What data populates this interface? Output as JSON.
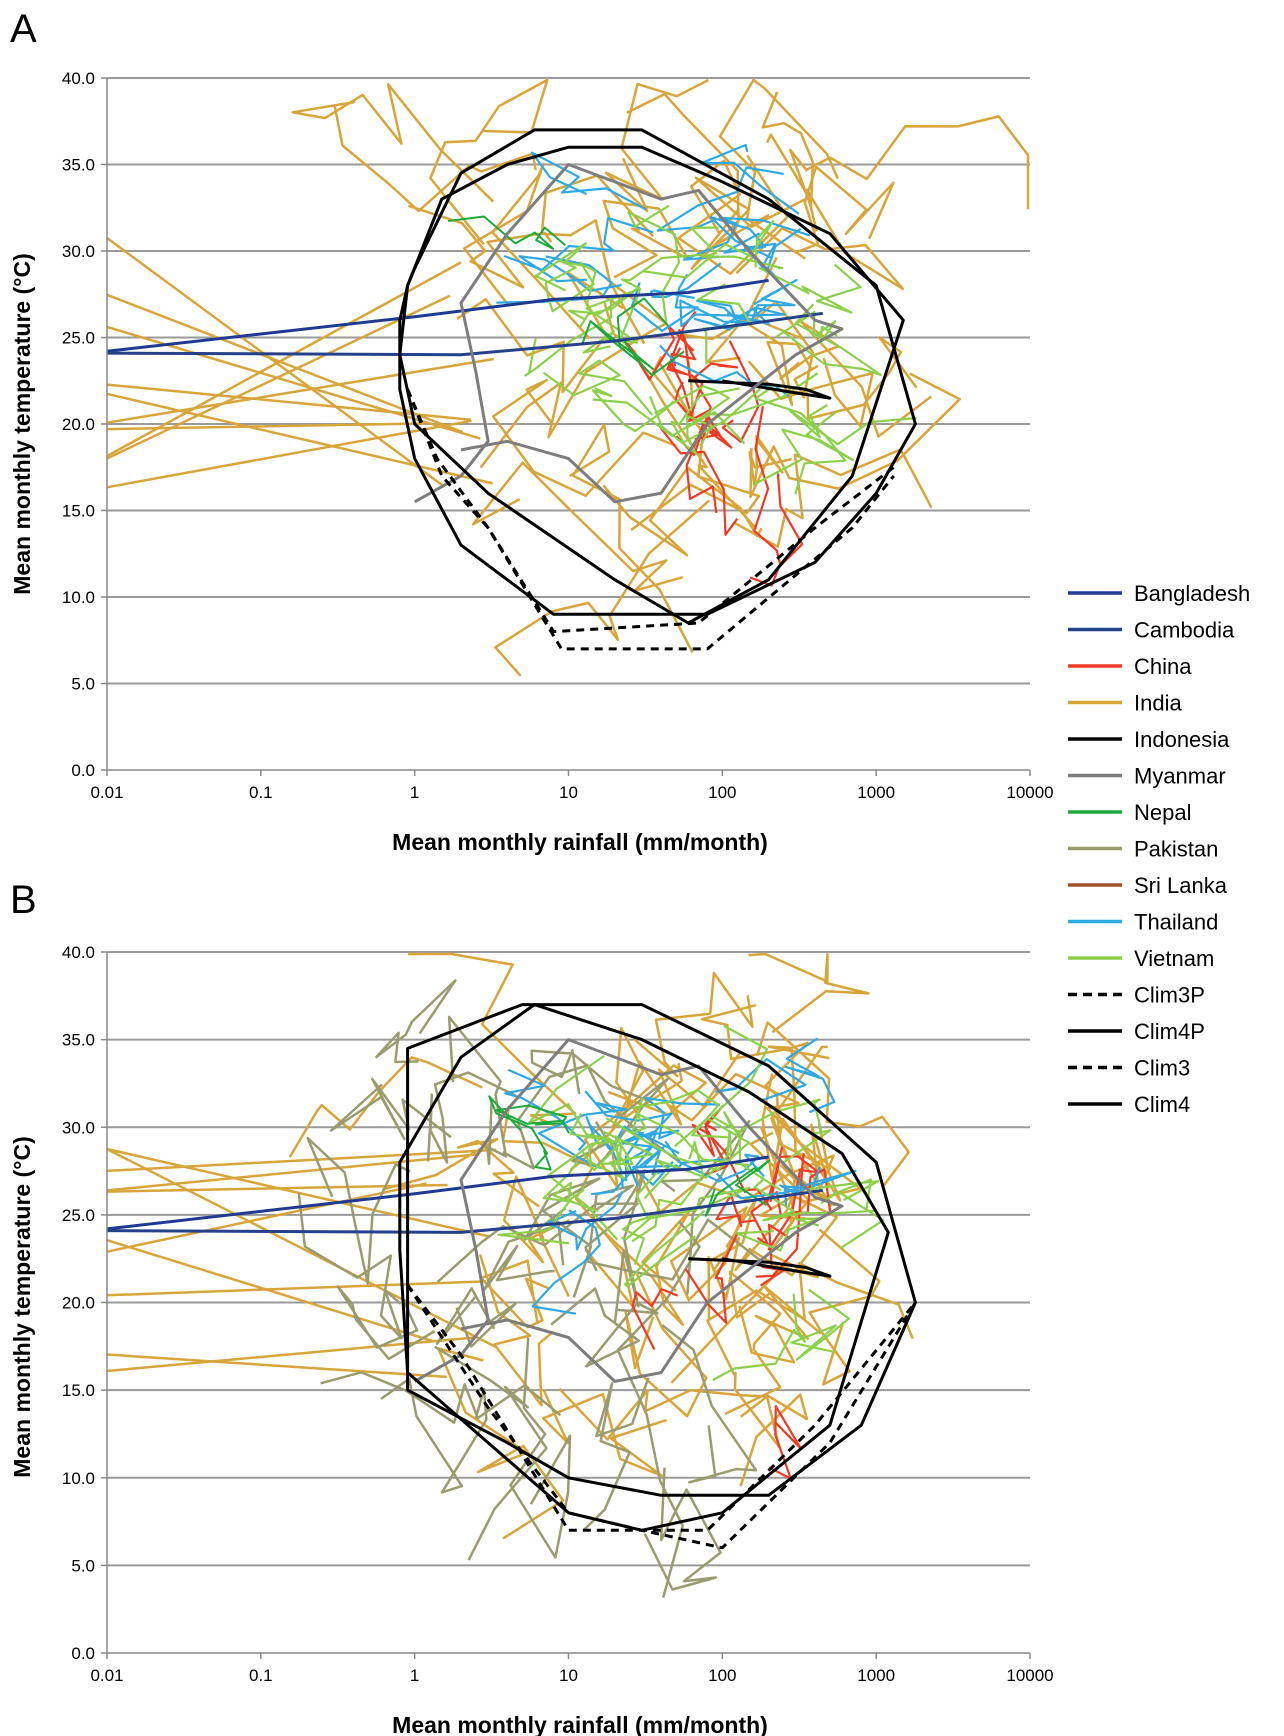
{
  "legend": [
    {
      "name": "Bangladesh",
      "color": "#1f3a93",
      "dash": false
    },
    {
      "name": "Cambodia",
      "color": "#24418a",
      "dash": false
    },
    {
      "name": "China",
      "color": "#f03a24",
      "dash": false
    },
    {
      "name": "India",
      "color": "#d8a53a",
      "dash": false
    },
    {
      "name": "Indonesia",
      "color": "#000000",
      "dash": false
    },
    {
      "name": "Myanmar",
      "color": "#7d7d7d",
      "dash": false
    },
    {
      "name": "Nepal",
      "color": "#1daa3c",
      "dash": false
    },
    {
      "name": "Pakistan",
      "color": "#9b9b70",
      "dash": false
    },
    {
      "name": "Sri Lanka",
      "color": "#a0522d",
      "dash": false
    },
    {
      "name": "Thailand",
      "color": "#2ea9e6",
      "dash": false
    },
    {
      "name": "Vietnam",
      "color": "#8cd04a",
      "dash": false
    },
    {
      "name": "Clim3P",
      "color": "#000000",
      "dash": true
    },
    {
      "name": "Clim4P",
      "color": "#000000",
      "dash": false
    },
    {
      "name": "Clim3",
      "color": "#000000",
      "dash": true
    },
    {
      "name": "Clim4",
      "color": "#000000",
      "dash": false
    }
  ],
  "chart_data": [
    {
      "type": "line",
      "panel": "A",
      "xlabel": "Mean monthly rainfall (mm/month)",
      "ylabel": "Mean monthly temperature (°C)",
      "xscale": "log",
      "xlim": [
        0.01,
        10000
      ],
      "ylim": [
        0,
        40
      ],
      "xticks": [
        "0.01",
        "0.1",
        "1",
        "10",
        "100",
        "1000",
        "10000"
      ],
      "yticks": [
        "0.0",
        "5.0",
        "10.0",
        "15.0",
        "20.0",
        "25.0",
        "30.0",
        "35.0",
        "40.0"
      ],
      "grid": "horizontal",
      "legend_position": "right",
      "envelopes": [
        {
          "name": "Clim3P",
          "dash": true,
          "points": [
            [
              0.9,
              22
            ],
            [
              1.5,
              17
            ],
            [
              3,
              14
            ],
            [
              8,
              8
            ],
            [
              70,
              8.5
            ],
            [
              400,
              14
            ],
            [
              1300,
              17.5
            ]
          ]
        },
        {
          "name": "Clim4P",
          "dash": false,
          "points": [
            [
              0.9,
              28
            ],
            [
              1,
              29
            ],
            [
              2,
              34.5
            ],
            [
              6,
              37
            ],
            [
              30,
              37
            ],
            [
              200,
              33
            ],
            [
              1000,
              28
            ],
            [
              1800,
              20
            ],
            [
              1000,
              16
            ],
            [
              400,
              12
            ],
            [
              80,
              9
            ],
            [
              8,
              9
            ],
            [
              2,
              13
            ],
            [
              1,
              18
            ],
            [
              0.8,
              22
            ],
            [
              0.8,
              26
            ]
          ]
        },
        {
          "name": "Clim3",
          "dash": true,
          "points": [
            [
              0.9,
              22
            ],
            [
              1.4,
              18
            ],
            [
              3,
              14
            ],
            [
              9,
              7
            ],
            [
              80,
              7
            ],
            [
              700,
              14
            ],
            [
              1300,
              17
            ]
          ]
        },
        {
          "name": "Clim4",
          "dash": false,
          "points": [
            [
              0.9,
              28
            ],
            [
              1.5,
              33
            ],
            [
              4,
              35
            ],
            [
              10,
              36
            ],
            [
              30,
              36
            ],
            [
              100,
              34
            ],
            [
              500,
              31
            ],
            [
              1500,
              26
            ],
            [
              700,
              17
            ],
            [
              200,
              11
            ],
            [
              60,
              8.5
            ],
            [
              20,
              11
            ],
            [
              3,
              16
            ],
            [
              1,
              20
            ],
            [
              0.8,
              24
            ]
          ]
        }
      ],
      "series": [
        {
          "name": "Bangladesh",
          "lines": [
            [
              [
                0.01,
                24.2
              ],
              [
                1,
                26.2
              ],
              [
                8,
                27.2
              ],
              [
                60,
                27.6
              ],
              [
                200,
                28.3
              ]
            ]
          ]
        },
        {
          "name": "Cambodia",
          "lines": [
            [
              [
                0.01,
                24.1
              ],
              [
                2,
                24
              ],
              [
                20,
                24.8
              ],
              [
                150,
                25.8
              ],
              [
                450,
                26.4
              ]
            ]
          ]
        },
        {
          "name": "Indonesia",
          "lines": [
            [
              [
                60,
                22.5
              ],
              [
                200,
                22.3
              ],
              [
                350,
                22.0
              ],
              [
                500,
                21.5
              ],
              [
                300,
                21.8
              ],
              [
                100,
                22.5
              ]
            ]
          ]
        },
        {
          "name": "Myanmar",
          "lines": [
            [
              [
                1,
                15.5
              ],
              [
                2,
                17
              ],
              [
                3,
                19
              ],
              [
                2.5,
                23
              ],
              [
                2,
                27
              ],
              [
                4,
                31
              ],
              [
                10,
                35
              ],
              [
                40,
                33
              ],
              [
                70,
                33.5
              ],
              [
                150,
                30
              ],
              [
                400,
                26
              ],
              [
                600,
                25.5
              ],
              [
                300,
                24
              ],
              [
                80,
                20
              ],
              [
                40,
                16
              ],
              [
                20,
                15.5
              ],
              [
                10,
                18
              ],
              [
                4,
                19
              ],
              [
                2,
                18.5
              ]
            ]
          ]
        }
      ]
    },
    {
      "type": "line",
      "panel": "B",
      "xlabel": "Mean monthly rainfall (mm/month)",
      "ylabel": "Mean monthly temperature (°C)",
      "xscale": "log",
      "xlim": [
        0.01,
        10000
      ],
      "ylim": [
        0,
        40
      ],
      "xticks": [
        "0.01",
        "0.1",
        "1",
        "10",
        "100",
        "1000",
        "10000"
      ],
      "yticks": [
        "0.0",
        "5.0",
        "10.0",
        "15.0",
        "20.0",
        "25.0",
        "30.0",
        "35.0",
        "40.0"
      ],
      "grid": "horizontal",
      "legend_position": "right",
      "envelopes": [
        {
          "name": "Clim3P",
          "dash": true,
          "points": [
            [
              0.9,
              21
            ],
            [
              2,
              17
            ],
            [
              10,
              7
            ],
            [
              80,
              7
            ],
            [
              400,
              13
            ],
            [
              1800,
              20
            ]
          ]
        },
        {
          "name": "Clim4P",
          "dash": false,
          "points": [
            [
              0.9,
              15
            ],
            [
              0.9,
              34.5
            ],
            [
              5,
              37
            ],
            [
              30,
              37
            ],
            [
              200,
              33.5
            ],
            [
              1000,
              28
            ],
            [
              1800,
              20
            ],
            [
              800,
              13
            ],
            [
              200,
              9
            ],
            [
              40,
              9
            ],
            [
              10,
              10
            ],
            [
              4,
              12
            ],
            [
              0.9,
              15
            ]
          ]
        },
        {
          "name": "Clim3",
          "dash": true,
          "points": [
            [
              0.9,
              21
            ],
            [
              3,
              14
            ],
            [
              10,
              8
            ],
            [
              30,
              7
            ],
            [
              100,
              6
            ],
            [
              500,
              12
            ],
            [
              1800,
              20
            ]
          ]
        },
        {
          "name": "Clim4",
          "dash": false,
          "points": [
            [
              0.8,
              28
            ],
            [
              2,
              34
            ],
            [
              6,
              37
            ],
            [
              30,
              35
            ],
            [
              150,
              32
            ],
            [
              600,
              28.5
            ],
            [
              1200,
              24
            ],
            [
              500,
              13
            ],
            [
              100,
              8
            ],
            [
              30,
              7
            ],
            [
              10,
              8
            ],
            [
              3,
              12
            ],
            [
              0.9,
              16
            ],
            [
              0.8,
              23
            ]
          ]
        }
      ],
      "series": [
        {
          "name": "Bangladesh",
          "lines": [
            [
              [
                0.01,
                24.2
              ],
              [
                1,
                26.2
              ],
              [
                8,
                27.2
              ],
              [
                60,
                27.6
              ],
              [
                200,
                28.3
              ]
            ]
          ]
        },
        {
          "name": "Cambodia",
          "lines": [
            [
              [
                0.01,
                24.1
              ],
              [
                2,
                24
              ],
              [
                20,
                24.8
              ],
              [
                150,
                25.8
              ],
              [
                450,
                26.4
              ]
            ]
          ]
        },
        {
          "name": "Indonesia",
          "lines": [
            [
              [
                60,
                22.5
              ],
              [
                200,
                22.3
              ],
              [
                350,
                22.0
              ],
              [
                500,
                21.5
              ],
              [
                300,
                21.8
              ],
              [
                100,
                22.5
              ]
            ]
          ]
        },
        {
          "name": "Myanmar",
          "lines": [
            [
              [
                1,
                15.5
              ],
              [
                2,
                17
              ],
              [
                3,
                19
              ],
              [
                2.5,
                23
              ],
              [
                2,
                27
              ],
              [
                4,
                31
              ],
              [
                10,
                35
              ],
              [
                40,
                33
              ],
              [
                70,
                33.5
              ],
              [
                150,
                30
              ],
              [
                400,
                26
              ],
              [
                600,
                25.5
              ],
              [
                300,
                24
              ],
              [
                80,
                20
              ],
              [
                40,
                16
              ],
              [
                20,
                15.5
              ],
              [
                10,
                18
              ],
              [
                4,
                19
              ],
              [
                2,
                18.5
              ]
            ]
          ]
        }
      ]
    }
  ]
}
